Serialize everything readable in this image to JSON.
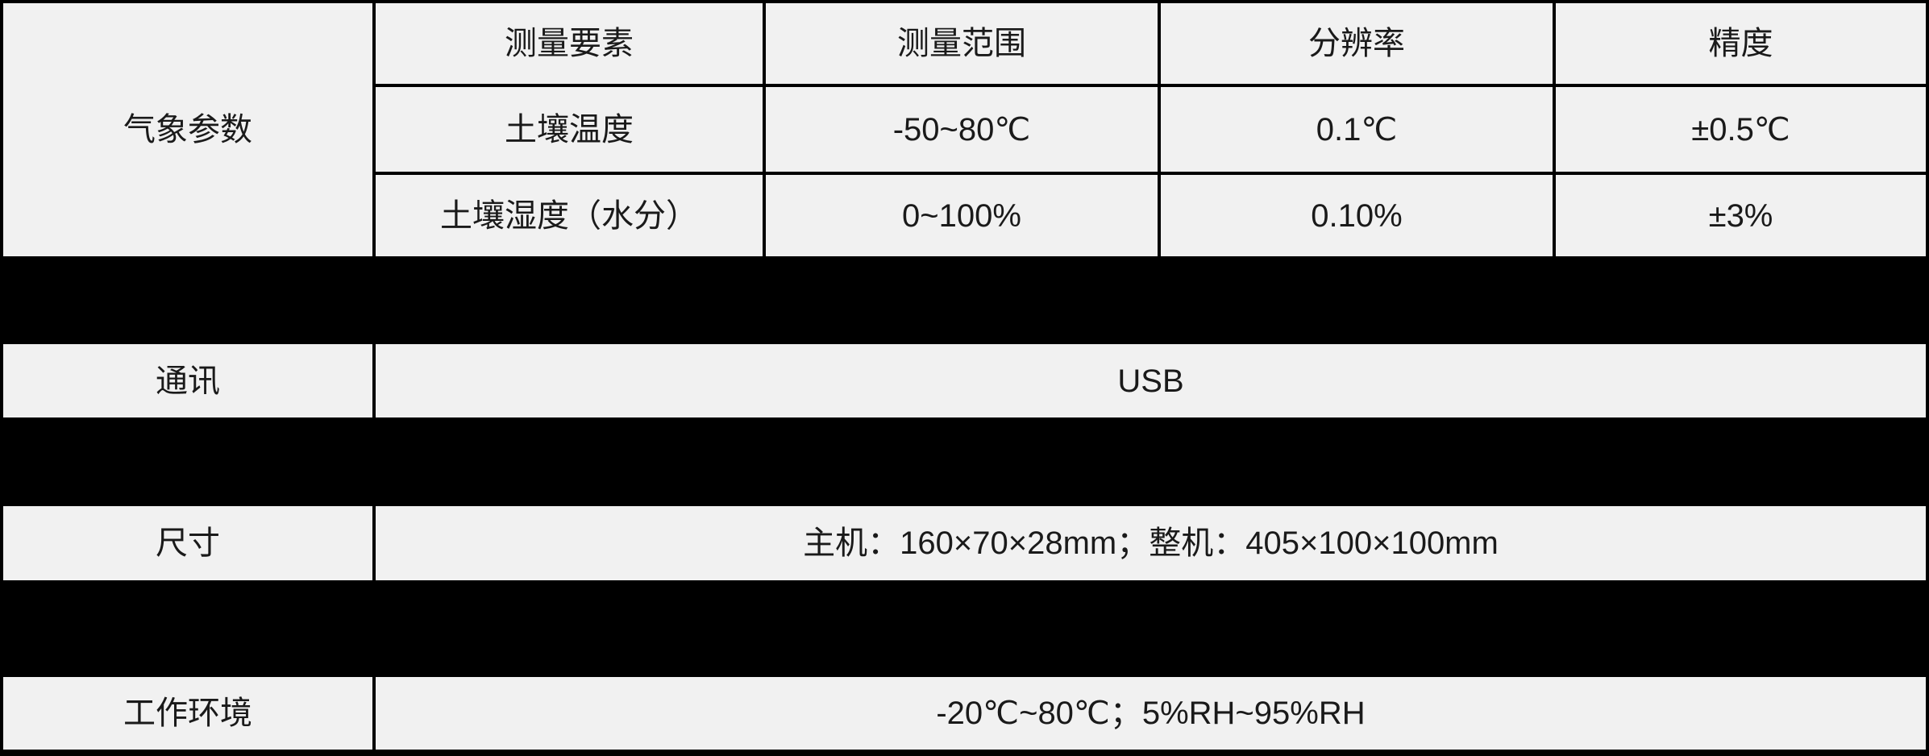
{
  "colors": {
    "page_background": "#000000",
    "cell_background": "#f1f1f1",
    "grid_border": "#000000",
    "text": "#1a1a1a"
  },
  "spec_table": {
    "weather_section": {
      "group_label": "气象参数",
      "headers": {
        "element": "测量要素",
        "range": "测量范围",
        "resolution": "分辨率",
        "accuracy": "精度"
      },
      "rows": [
        {
          "element": "土壤温度",
          "range": "-50~80℃",
          "resolution": "0.1℃",
          "accuracy": "±0.5℃"
        },
        {
          "element": "土壤湿度（水分）",
          "range": "0~100%",
          "resolution": "0.10%",
          "accuracy": "±3%"
        }
      ]
    },
    "communication_row": {
      "label": "通讯",
      "value": "USB"
    },
    "size_row": {
      "label": "尺寸",
      "value": "主机：160×70×28mm；整机：405×100×100mm"
    },
    "environment_row": {
      "label": "工作环境",
      "value": "-20℃~80℃；5%RH~95%RH"
    }
  }
}
